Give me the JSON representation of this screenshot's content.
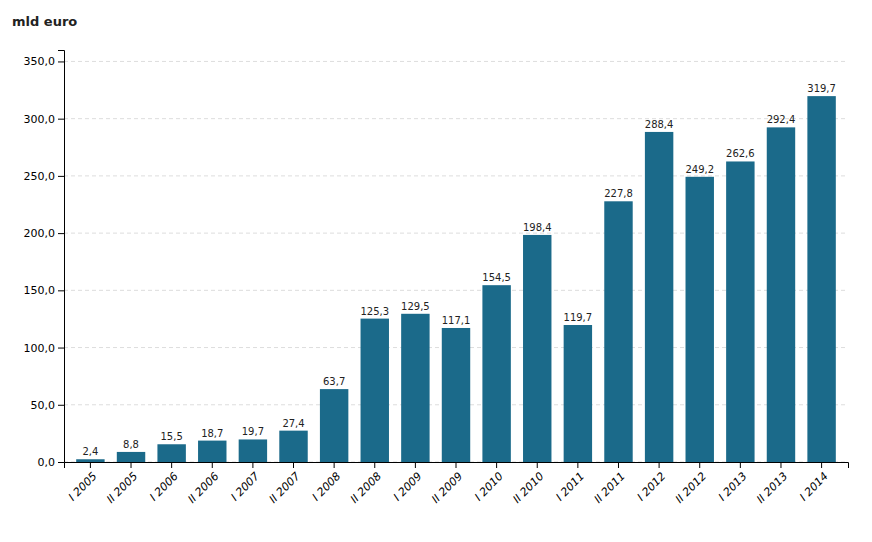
{
  "chart_data": {
    "type": "bar",
    "ylabel": "mld euro",
    "categories": [
      "I 2005",
      "II 2005",
      "I 2006",
      "II 2006",
      "I 2007",
      "II 2007",
      "I 2008",
      "II 2008",
      "I 2009",
      "II 2009",
      "I 2010",
      "II 2010",
      "I 2011",
      "II 2011",
      "I 2012",
      "II 2012",
      "I 2013",
      "II 2013",
      "I 2014"
    ],
    "values": [
      2.4,
      8.8,
      15.5,
      18.7,
      19.7,
      27.4,
      63.7,
      125.3,
      129.5,
      117.1,
      154.5,
      198.4,
      119.7,
      227.8,
      288.4,
      249.2,
      262.6,
      292.4,
      319.7
    ],
    "value_labels": [
      "2,4",
      "8,8",
      "15,5",
      "18,7",
      "19,7",
      "27,4",
      "63,7",
      "125,3",
      "129,5",
      "117,1",
      "154,5",
      "198,4",
      "119,7",
      "227,8",
      "288,4",
      "249,2",
      "262,6",
      "292,4",
      "319,7"
    ],
    "color": "#1B6A8A",
    "ylim": [
      0,
      360
    ],
    "yticks": [
      {
        "value": 0,
        "label": "0,0"
      },
      {
        "value": 50,
        "label": "50,0"
      },
      {
        "value": 100,
        "label": "100,0"
      },
      {
        "value": 150,
        "label": "150,0"
      },
      {
        "value": 200,
        "label": "200,0"
      },
      {
        "value": 250,
        "label": "250,0"
      },
      {
        "value": 300,
        "label": "300,0"
      },
      {
        "value": 350,
        "label": "350,0"
      }
    ],
    "grid": true,
    "data_labels": true
  }
}
